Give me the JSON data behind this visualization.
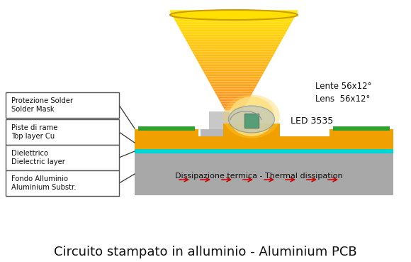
{
  "title": "Circuito stampato in alluminio - Aluminium PCB",
  "title_fontsize": 13,
  "background_color": "#ffffff",
  "labels": {
    "box1": "Protezione Solder\nSolder Mask",
    "box2": "Piste di rame\nTop layer Cu",
    "box3": "Dielettrico\nDielectric layer",
    "box4": "Fondo Alluminio\nAluminium Substr.",
    "led_label": "LED 3535",
    "lens_label": "Lente 56x12°\nLens  56x12°",
    "thermal_label": "Dissipazione termica - Thermal dissipation"
  },
  "colors": {
    "aluminum_base": "#a8a8a8",
    "dielectric": "#00d4d4",
    "copper": "#f0a000",
    "solder_mask_green": "#30a030",
    "led_green": "#228822",
    "lens_gray_top": "#cccccc",
    "lens_gray_bot": "#b8b8b8",
    "glow_yellow": "#ffd700",
    "arrow_red": "#cc0000",
    "box_border": "#555555",
    "text_color": "#111111",
    "line_color": "#333333"
  }
}
